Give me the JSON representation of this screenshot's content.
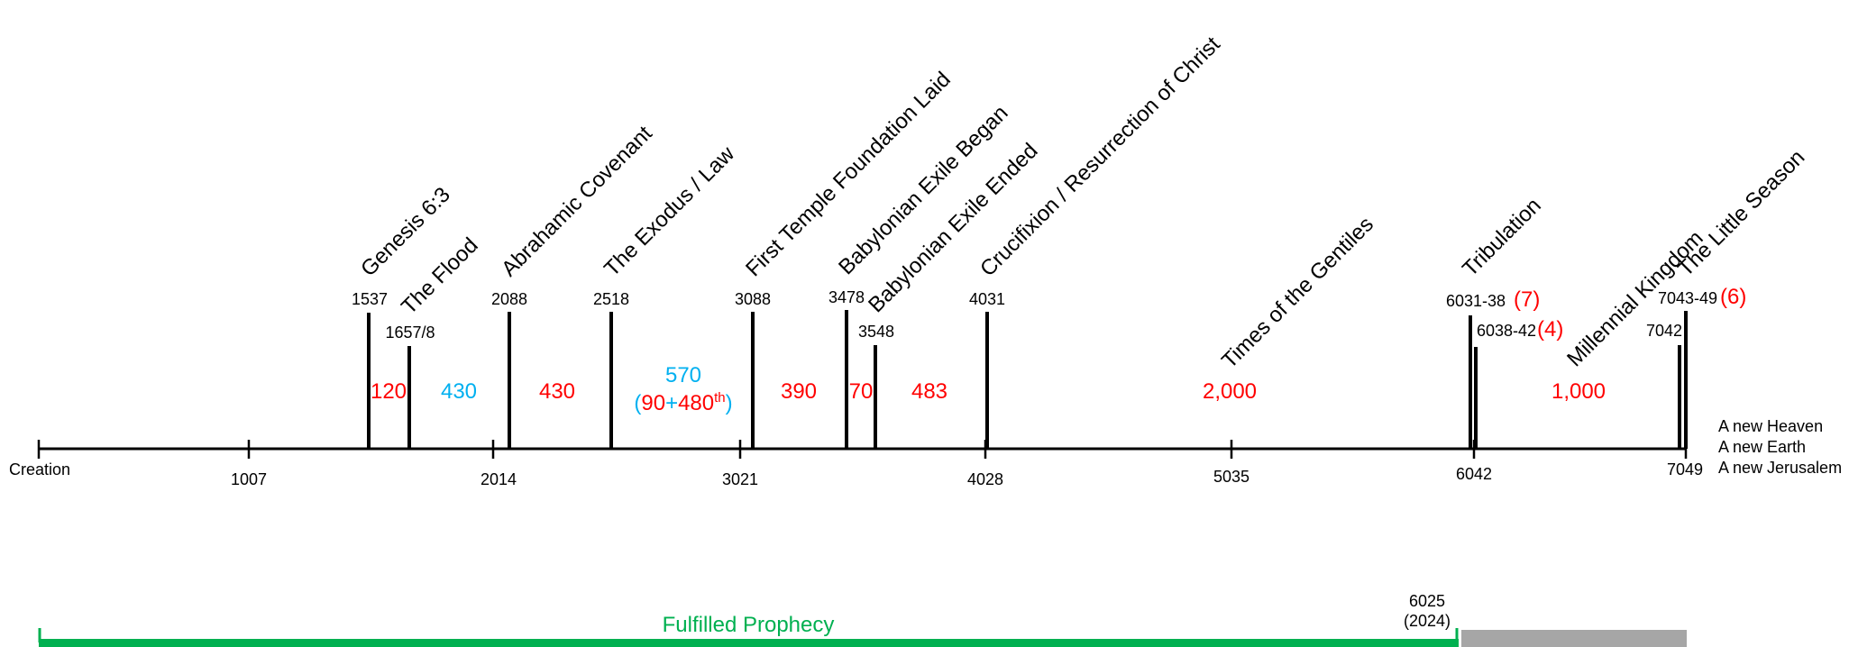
{
  "axis": {
    "ticks": [
      "Creation",
      "1007",
      "2014",
      "3021",
      "4028",
      "5035",
      "6042",
      "7049"
    ]
  },
  "events": [
    {
      "title": "Genesis 6:3",
      "year": "1537"
    },
    {
      "title": "The Flood",
      "year": "1657/8"
    },
    {
      "title": "Abrahamic Covenant",
      "year": "2088"
    },
    {
      "title": "The Exodus / Law",
      "year": "2518"
    },
    {
      "title": "First Temple Foundation Laid",
      "year": "3088"
    },
    {
      "title": "Babylonian Exile Began",
      "year": "3478"
    },
    {
      "title": "Babylonian Exile Ended",
      "year": "3548"
    },
    {
      "title": "Crucifixion / Resurrection of Christ",
      "year": "4031"
    },
    {
      "title": "Times of the Gentiles",
      "year": ""
    },
    {
      "title": "Tribulation",
      "year": "6031-38",
      "count": "(7)"
    },
    {
      "title": "",
      "year": "6038-42",
      "count": "(4)"
    },
    {
      "title": "Millennial Kingdom",
      "year": "7042"
    },
    {
      "title": "The Little Season",
      "year": "7043-49",
      "count": "(6)"
    }
  ],
  "spans": {
    "s120": "120",
    "s430a": "430",
    "s430b": "430",
    "s570": "570",
    "s570_open": "(",
    "s570_90": "90",
    "s570_plus": "+",
    "s570_480": "480",
    "s570_th": "th",
    "s570_close": ")",
    "s390": "390",
    "s70": "70",
    "s483": "483",
    "s2000": "2,000",
    "s1000": "1,000"
  },
  "ending": [
    "A new Heaven",
    "A new Earth",
    "A new Jerusalem"
  ],
  "prophecy": {
    "label": "Fulfilled Prophecy",
    "marker_year": "6025",
    "marker_ad": "(2024)"
  },
  "colors": {
    "red": "#ff0000",
    "blue": "#00b0f0",
    "green": "#00b050",
    "gray": "#a6a6a6"
  }
}
